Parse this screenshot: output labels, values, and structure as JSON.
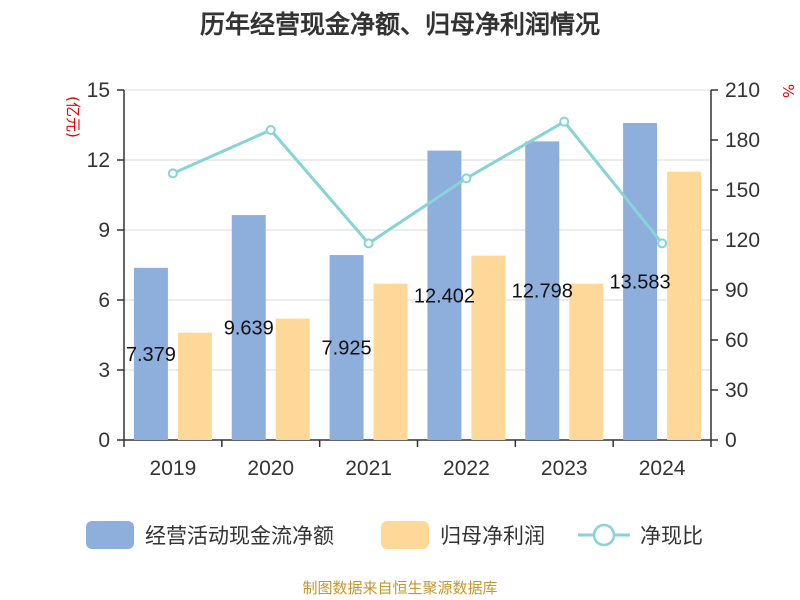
{
  "chart_data": {
    "type": "bar",
    "title": "历年经营现金净额、归母净利润情况",
    "categories": [
      "2019",
      "2020",
      "2021",
      "2022",
      "2023",
      "2024"
    ],
    "series": [
      {
        "name": "经营活动现金流净额",
        "type": "bar",
        "axis": "left",
        "color": "#8eaedb",
        "values": [
          7.379,
          9.639,
          7.925,
          12.402,
          12.798,
          13.583
        ],
        "labels": [
          "7.379",
          "9.639",
          "7.925",
          "12.402",
          "12.798",
          "13.583"
        ]
      },
      {
        "name": "归母净利润",
        "type": "bar",
        "axis": "left",
        "color": "#fed899",
        "values": [
          4.6,
          5.2,
          6.7,
          7.9,
          6.7,
          11.5
        ]
      },
      {
        "name": "净现比",
        "type": "line",
        "axis": "right",
        "color": "#88d3d8",
        "values": [
          160,
          186,
          118,
          157,
          191,
          118
        ]
      }
    ],
    "y_left": {
      "label": "(亿元)",
      "min": 0,
      "max": 15,
      "ticks": [
        "0",
        "3",
        "6",
        "9",
        "12",
        "15"
      ]
    },
    "y_right": {
      "label": "%",
      "min": 0,
      "max": 210,
      "ticks": [
        "0",
        "30",
        "60",
        "90",
        "120",
        "150",
        "180",
        "210"
      ]
    },
    "grid": true,
    "legend_position": "bottom"
  },
  "source": "制图数据来自恒生聚源数据库"
}
